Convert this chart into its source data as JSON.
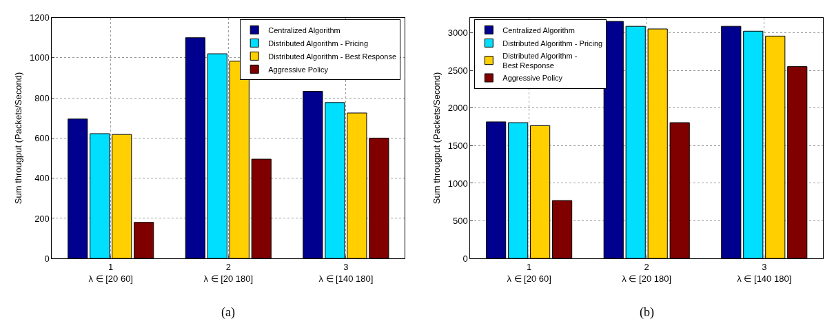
{
  "chart_data": [
    {
      "type": "bar",
      "title": "(a)",
      "ylabel": "Sum througput (Packets/Second)",
      "categories": [
        "1\nλ ∈ [20 60]",
        "2\nλ ∈ [20 180]",
        "3\nλ ∈ [140 180]"
      ],
      "series": [
        {
          "name": "Centralized Algorithm",
          "color": "#00008f",
          "values": [
            695,
            1100,
            833
          ]
        },
        {
          "name": "Distributed Algorithm - Pricing",
          "color": "#00dfff",
          "values": [
            622,
            1020,
            777
          ]
        },
        {
          "name": "Distributed Algorithm - Best Response",
          "color": "#ffcf00",
          "values": [
            618,
            983,
            725
          ]
        },
        {
          "name": "Aggressive Policy",
          "color": "#800000",
          "values": [
            180,
            495,
            600
          ]
        }
      ],
      "ylim": [
        0,
        1200
      ],
      "yticks": [
        0,
        200,
        400,
        600,
        800,
        1000,
        1200
      ],
      "grid": true,
      "legend": "top right"
    },
    {
      "type": "bar",
      "title": "(b)",
      "ylabel": "Sum througput (Packets/Second)",
      "categories": [
        "1\nλ ∈ [20 60]",
        "2\nλ ∈ [20 180]",
        "3\nλ ∈ [140 180]"
      ],
      "series": [
        {
          "name": "Centralized Algorithm",
          "color": "#00008f",
          "values": [
            1815,
            3150,
            3085
          ]
        },
        {
          "name": "Distributed Algorithm - Pricing",
          "color": "#00dfff",
          "values": [
            1805,
            3085,
            3020
          ]
        },
        {
          "name": "Distributed Algorithm -\nBest Response",
          "color": "#ffcf00",
          "values": [
            1765,
            3050,
            2955
          ]
        },
        {
          "name": "Aggressive Policy",
          "color": "#800000",
          "values": [
            770,
            1805,
            2550
          ]
        }
      ],
      "ylim": [
        0,
        3200
      ],
      "yticks": [
        0,
        500,
        1000,
        1500,
        2000,
        2500,
        3000
      ],
      "grid": true,
      "legend": "top left"
    }
  ]
}
